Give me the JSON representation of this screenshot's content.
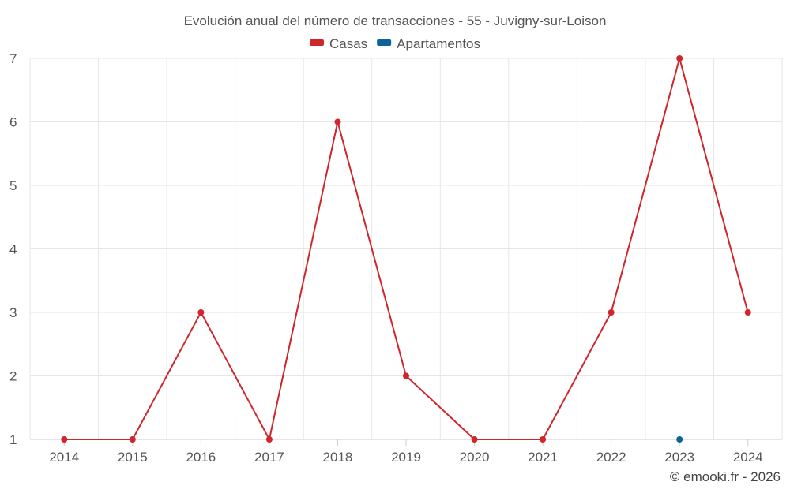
{
  "chart_data": {
    "type": "line",
    "title": "Evolución anual del número de transacciones - 55 - Juvigny-sur-Loison",
    "categories": [
      "2014",
      "2015",
      "2016",
      "2017",
      "2018",
      "2019",
      "2020",
      "2021",
      "2022",
      "2023",
      "2024"
    ],
    "ylim": [
      1,
      7
    ],
    "yticks": [
      1,
      2,
      3,
      4,
      5,
      6,
      7
    ],
    "grid": true,
    "legend_position": "top-center",
    "series": [
      {
        "name": "Casas",
        "color": "#d0262b",
        "values": [
          1,
          1,
          3,
          1,
          6,
          2,
          1,
          1,
          3,
          7,
          3
        ]
      },
      {
        "name": "Apartamentos",
        "color": "#0a6496",
        "values": [
          null,
          null,
          null,
          null,
          null,
          null,
          null,
          null,
          null,
          1,
          null
        ]
      }
    ],
    "xlabel": "",
    "ylabel": ""
  },
  "credit": "© emooki.fr - 2026"
}
